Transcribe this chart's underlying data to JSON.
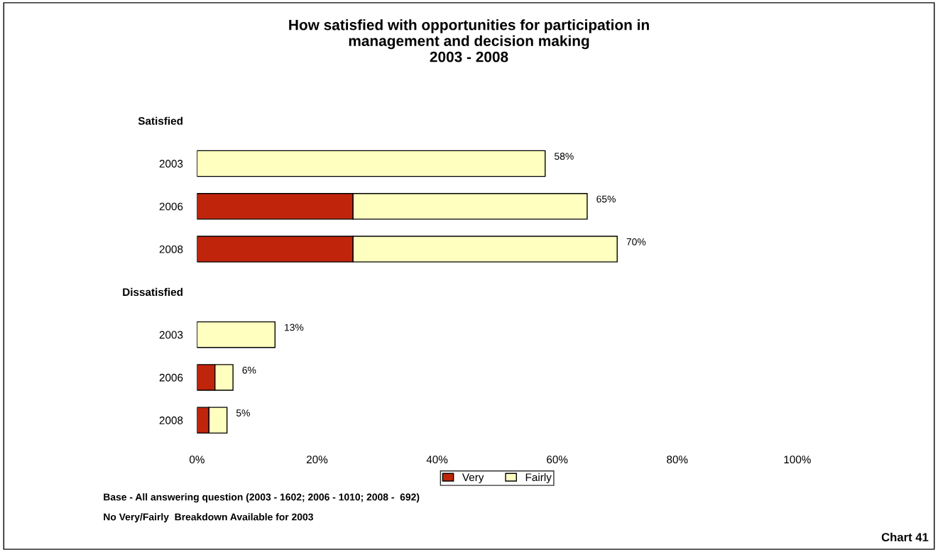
{
  "chart_data": {
    "type": "bar",
    "orientation": "horizontal",
    "stacked": true,
    "title": "How satisfied with opportunities for participation in\nmanagement and decision making\n2003 - 2008",
    "categories": [
      "Satisfied",
      "2003",
      "2006",
      "2008",
      "Dissatisfied",
      "2003",
      "2006",
      "2008"
    ],
    "series": [
      {
        "name": "Very",
        "color": "#c0250c",
        "values": [
          null,
          0,
          26,
          26,
          null,
          0,
          3,
          2
        ]
      },
      {
        "name": "Fairly",
        "color": "#ffffc0",
        "values": [
          null,
          58,
          39,
          44,
          null,
          13,
          3,
          3
        ]
      }
    ],
    "totals": [
      null,
      "58%",
      "65%",
      "70%",
      null,
      "13%",
      "6%",
      "5%"
    ],
    "xlim": [
      0,
      100
    ],
    "xticks": [
      {
        "value": 0,
        "label": "0%"
      },
      {
        "value": 20,
        "label": "20%"
      },
      {
        "value": 40,
        "label": "40%"
      },
      {
        "value": 60,
        "label": "60%"
      },
      {
        "value": 80,
        "label": "80%"
      },
      {
        "value": 100,
        "label": "100%"
      }
    ],
    "grid": false,
    "legend": "bottom",
    "annotations": [
      "Base - All answering question (2003 - 1602; 2006 - 1010; 2008 -  692)",
      "No Very/Fairly  Breakdown Available for 2003",
      "Chart 41"
    ]
  }
}
